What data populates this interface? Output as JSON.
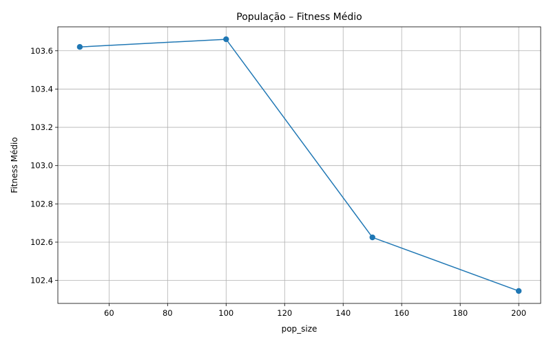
{
  "chart_data": {
    "type": "line",
    "title": "População – Fitness Médio",
    "xlabel": "pop_size",
    "ylabel": "Fitness Médio",
    "x": [
      50,
      100,
      150,
      200
    ],
    "series": [
      {
        "values": [
          103.62,
          103.66,
          102.625,
          102.345
        ],
        "color": "#1f77b4",
        "marker": "circle"
      }
    ],
    "xlim": [
      42.5,
      207.5
    ],
    "ylim": [
      102.28,
      103.725
    ],
    "xticks": [
      60,
      80,
      100,
      120,
      140,
      160,
      180,
      200
    ],
    "yticks": [
      102.4,
      102.6,
      102.8,
      103.0,
      103.2,
      103.4,
      103.6
    ],
    "xtick_labels": [
      "60",
      "80",
      "100",
      "120",
      "140",
      "160",
      "180",
      "200"
    ],
    "ytick_labels": [
      "102.4",
      "102.6",
      "102.8",
      "103.0",
      "103.2",
      "103.4",
      "103.6"
    ],
    "grid": true
  }
}
